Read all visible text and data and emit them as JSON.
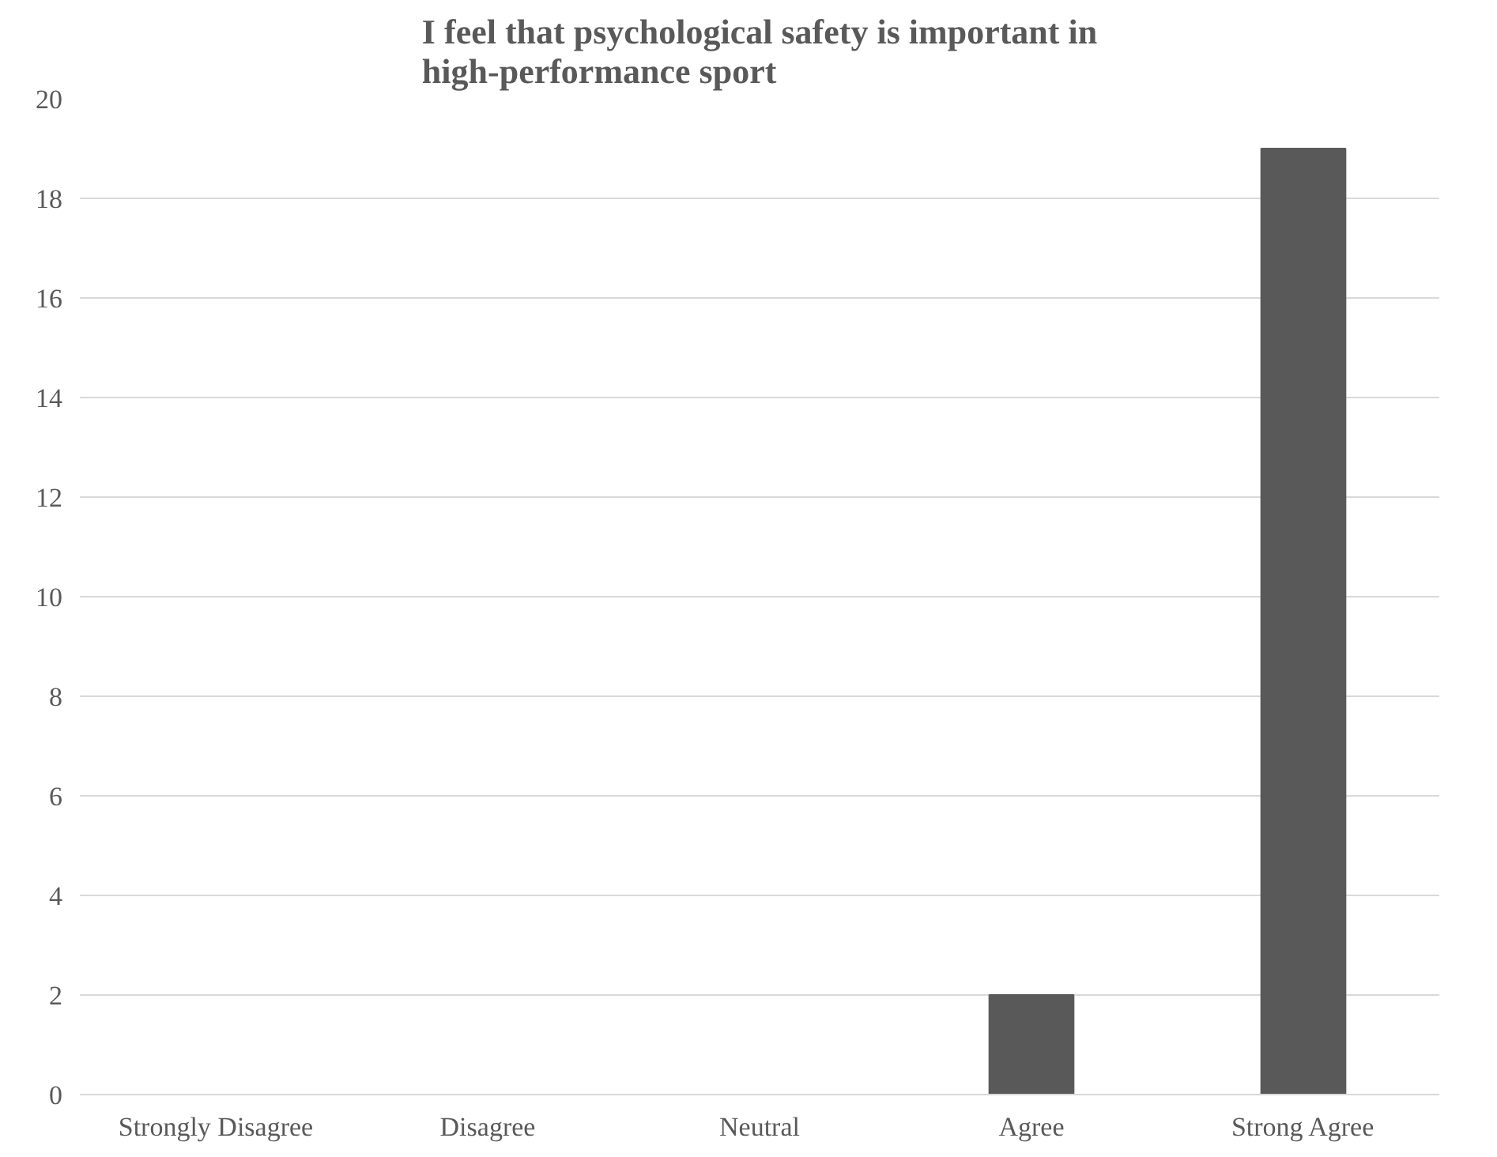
{
  "chart_data": {
    "type": "bar",
    "title": "I feel that psychological safety is important in\nhigh-performance sport",
    "categories": [
      "Strongly Disagree",
      "Disagree",
      "Neutral",
      "Agree",
      "Strong Agree"
    ],
    "values": [
      0,
      0,
      0,
      2,
      19
    ],
    "color": "#595959",
    "ylim": [
      0,
      20
    ],
    "yticks": [
      0,
      2,
      4,
      6,
      8,
      10,
      12,
      14,
      16,
      18,
      20
    ],
    "grid": "y"
  }
}
